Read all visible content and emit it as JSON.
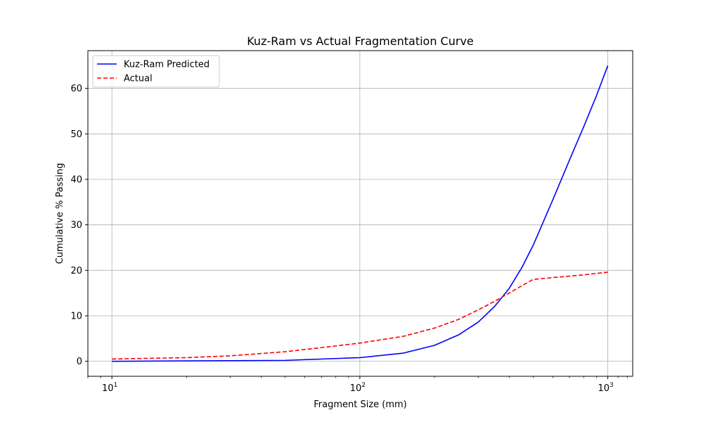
{
  "chart_data": {
    "type": "line",
    "title": "Kuz-Ram vs Actual Fragmentation Curve",
    "xlabel": "Fragment Size (mm)",
    "ylabel": "Cumulative % Passing",
    "x_scale": "log",
    "xlim": [
      8,
      1260
    ],
    "ylim": [
      -3.3,
      68.3
    ],
    "x_major_ticks": [
      10,
      100,
      1000
    ],
    "x_tick_labels": [
      {
        "base": "10",
        "exp": "1"
      },
      {
        "base": "10",
        "exp": "2"
      },
      {
        "base": "10",
        "exp": "3"
      }
    ],
    "y_ticks": [
      0,
      10,
      20,
      30,
      40,
      50,
      60
    ],
    "y_tick_labels": [
      "0",
      "10",
      "20",
      "30",
      "40",
      "50",
      "60"
    ],
    "grid": true,
    "legend_position": "top-left",
    "series": [
      {
        "name": "Kuz-Ram Predicted",
        "color": "#0000ff",
        "dash": "solid",
        "points": [
          [
            10,
            0.0
          ],
          [
            50,
            0.2
          ],
          [
            100,
            0.8
          ],
          [
            150,
            1.8
          ],
          [
            200,
            3.5
          ],
          [
            250,
            5.8
          ],
          [
            300,
            8.6
          ],
          [
            350,
            12.1
          ],
          [
            400,
            16.0
          ],
          [
            450,
            20.6
          ],
          [
            500,
            25.5
          ],
          [
            600,
            35.5
          ],
          [
            700,
            44.2
          ],
          [
            800,
            51.6
          ],
          [
            900,
            58.4
          ],
          [
            1000,
            65.0
          ]
        ]
      },
      {
        "name": "Actual",
        "color": "#ff0000",
        "dash": "dashed",
        "points": [
          [
            10,
            0.5
          ],
          [
            20,
            0.8
          ],
          [
            30,
            1.2
          ],
          [
            50,
            2.1
          ],
          [
            70,
            3.0
          ],
          [
            100,
            4.0
          ],
          [
            150,
            5.5
          ],
          [
            200,
            7.3
          ],
          [
            250,
            9.2
          ],
          [
            300,
            11.3
          ],
          [
            350,
            13.2
          ],
          [
            400,
            15.0
          ],
          [
            450,
            16.6
          ],
          [
            500,
            18.0
          ],
          [
            600,
            18.4
          ],
          [
            800,
            19.0
          ],
          [
            1000,
            19.6
          ]
        ]
      }
    ]
  }
}
